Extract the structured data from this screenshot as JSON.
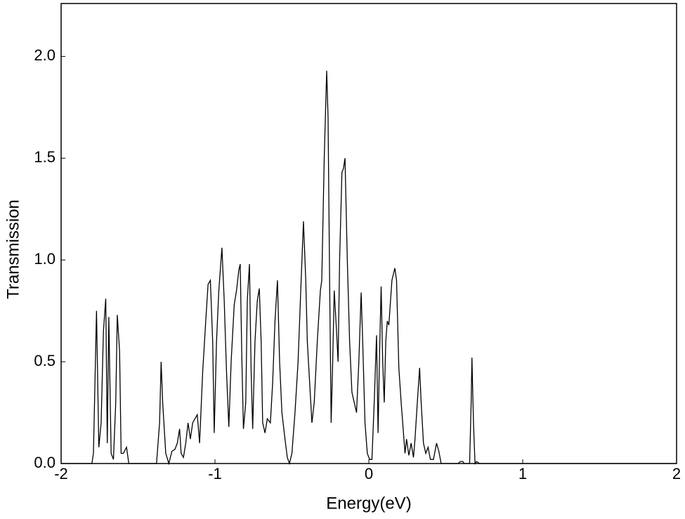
{
  "chart_data": {
    "type": "line",
    "xlabel": "Energy(eV)",
    "ylabel": "Transmission",
    "color": "#000000",
    "xlim": [
      -2,
      2
    ],
    "ylim": [
      0,
      2.26
    ],
    "xticks": [
      -2,
      -1,
      0,
      1,
      2
    ],
    "yticks": [
      {
        "value": 0,
        "label": "0.0"
      },
      {
        "value": 0.5,
        "label": "0.5"
      },
      {
        "value": 1,
        "label": "1.0"
      },
      {
        "value": 1.5,
        "label": "1.5"
      },
      {
        "value": 2,
        "label": "2.0"
      }
    ],
    "x": [
      -2,
      -1.8,
      -1.79,
      -1.77,
      -1.755,
      -1.74,
      -1.725,
      -1.71,
      -1.7,
      -1.69,
      -1.675,
      -1.66,
      -1.645,
      -1.635,
      -1.62,
      -1.61,
      -1.595,
      -1.575,
      -1.56,
      -1.38,
      -1.36,
      -1.35,
      -1.34,
      -1.32,
      -1.3,
      -1.28,
      -1.26,
      -1.245,
      -1.23,
      -1.22,
      -1.205,
      -1.19,
      -1.175,
      -1.16,
      -1.145,
      -1.13,
      -1.115,
      -1.1,
      -1.08,
      -1.06,
      -1.045,
      -1.03,
      -1.015,
      -1.005,
      -0.99,
      -0.975,
      -0.955,
      -0.94,
      -0.925,
      -0.91,
      -0.895,
      -0.875,
      -0.86,
      -0.845,
      -0.836,
      -0.825,
      -0.815,
      -0.8,
      -0.79,
      -0.776,
      -0.765,
      -0.755,
      -0.74,
      -0.725,
      -0.712,
      -0.7,
      -0.69,
      -0.675,
      -0.66,
      -0.64,
      -0.625,
      -0.61,
      -0.594,
      -0.58,
      -0.565,
      -0.545,
      -0.53,
      -0.516,
      -0.5,
      -0.48,
      -0.46,
      -0.44,
      -0.425,
      -0.41,
      -0.4,
      -0.385,
      -0.37,
      -0.355,
      -0.335,
      -0.315,
      -0.306,
      -0.29,
      -0.274,
      -0.265,
      -0.255,
      -0.245,
      -0.235,
      -0.225,
      -0.21,
      -0.2,
      -0.19,
      -0.175,
      -0.165,
      -0.155,
      -0.14,
      -0.125,
      -0.11,
      -0.095,
      -0.08,
      -0.065,
      -0.05,
      -0.04,
      -0.025,
      -0.01,
      0.005,
      0.02,
      0.035,
      0.05,
      0.06,
      0.07,
      0.08,
      0.09,
      0.1,
      0.11,
      0.12,
      0.13,
      0.15,
      0.169,
      0.18,
      0.195,
      0.21,
      0.225,
      0.235,
      0.245,
      0.26,
      0.275,
      0.29,
      0.3,
      0.315,
      0.33,
      0.34,
      0.355,
      0.37,
      0.385,
      0.4,
      0.42,
      0.44,
      0.455,
      0.47,
      0.58,
      0.595,
      0.61,
      0.62,
      0.655,
      0.665,
      0.67,
      0.68,
      0.69,
      0.7,
      0.72,
      2
    ],
    "values": [
      0,
      0,
      0.05,
      0.75,
      0.08,
      0.2,
      0.65,
      0.81,
      0.1,
      0.72,
      0.05,
      0.02,
      0.3,
      0.73,
      0.55,
      0.05,
      0.05,
      0.08,
      0,
      0,
      0.2,
      0.5,
      0.3,
      0.05,
      0,
      0.06,
      0.07,
      0.1,
      0.17,
      0.05,
      0.03,
      0.1,
      0.2,
      0.12,
      0.2,
      0.22,
      0.24,
      0.1,
      0.45,
      0.7,
      0.88,
      0.9,
      0.6,
      0.15,
      0.6,
      0.85,
      1.06,
      0.8,
      0.45,
      0.18,
      0.5,
      0.78,
      0.85,
      0.95,
      0.98,
      0.5,
      0.17,
      0.3,
      0.8,
      0.98,
      0.45,
      0.17,
      0.6,
      0.8,
      0.86,
      0.6,
      0.2,
      0.15,
      0.22,
      0.2,
      0.4,
      0.7,
      0.9,
      0.5,
      0.25,
      0.12,
      0.03,
      0,
      0.05,
      0.25,
      0.5,
      0.9,
      1.19,
      0.9,
      0.6,
      0.4,
      0.2,
      0.3,
      0.6,
      0.85,
      0.9,
      1.5,
      1.93,
      1.7,
      0.9,
      0.2,
      0.5,
      0.85,
      0.65,
      0.5,
      1.0,
      1.43,
      1.45,
      1.5,
      1.0,
      0.6,
      0.35,
      0.3,
      0.25,
      0.5,
      0.84,
      0.6,
      0.2,
      0.05,
      0.02,
      0.02,
      0.3,
      0.63,
      0.15,
      0.55,
      0.87,
      0.5,
      0.3,
      0.6,
      0.7,
      0.68,
      0.9,
      0.96,
      0.9,
      0.47,
      0.3,
      0.15,
      0.05,
      0.12,
      0.04,
      0.1,
      0.03,
      0.12,
      0.3,
      0.47,
      0.3,
      0.1,
      0.05,
      0.08,
      0.02,
      0.02,
      0.1,
      0.06,
      0,
      0,
      0.01,
      0.01,
      0,
      0,
      0.3,
      0.52,
      0.2,
      0,
      0.01,
      0,
      0
    ]
  }
}
